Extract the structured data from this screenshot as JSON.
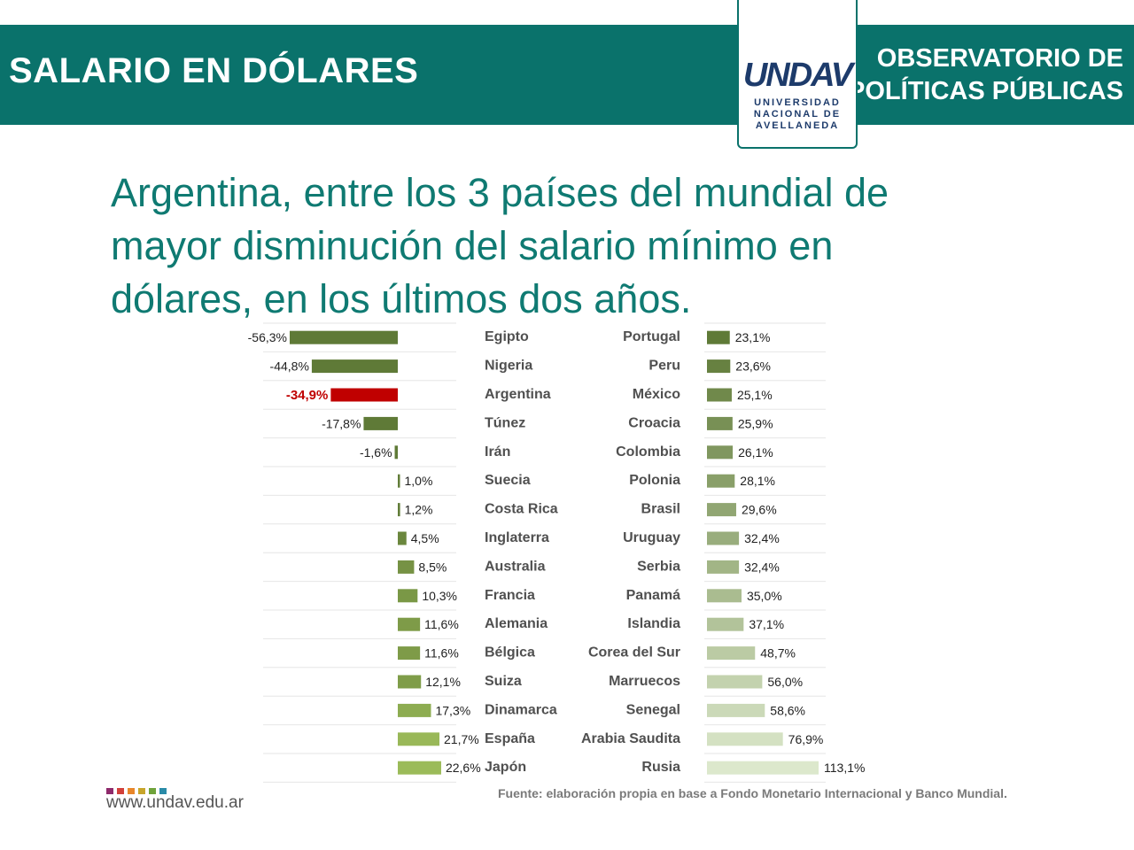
{
  "header": {
    "title": "SALARIO EN DÓLARES",
    "observatory_line1": "OBSERVATORIO DE",
    "observatory_line2": "POLÍTICAS PÚBLICAS",
    "logo_mark": "UNDAV",
    "logo_line1": "UNIVERSIDAD",
    "logo_line2": "NACIONAL DE",
    "logo_line3": "AVELLANEDA"
  },
  "headline": "Argentina, entre los 3 países del mundial de\nmayor disminución del salario mínimo en\ndólares, en los últimos dos años.",
  "footer": {
    "url": "www.undav.edu.ar",
    "source": "Fuente: elaboración propia en base a Fondo Monetario Internacional y Banco Mundial.",
    "dot_colors": [
      "#8e2a6b",
      "#d2403a",
      "#e8862a",
      "#c7a52b",
      "#6fa33b",
      "#2a8ba8"
    ]
  },
  "chart_data": {
    "type": "bar",
    "orientation": "horizontal",
    "unit": "%",
    "highlight": "Argentina",
    "colors": {
      "highlight": "#c00000",
      "negative": "#5f7a37",
      "positive_dark": "#5f7a37",
      "positive_light": "#dce8cc"
    },
    "panels": [
      {
        "categories": [
          "Egipto",
          "Nigeria",
          "Argentina",
          "Túnez",
          "Irán",
          "Suecia",
          "Costa Rica",
          "Inglaterra",
          "Australia",
          "Francia",
          "Alemania",
          "Bélgica",
          "Suiza",
          "Dinamarca",
          "España",
          "Japón"
        ],
        "values": [
          -56.3,
          -44.8,
          -34.9,
          -17.8,
          -1.6,
          1.0,
          1.2,
          4.5,
          8.5,
          10.3,
          11.6,
          11.6,
          12.1,
          17.3,
          21.7,
          22.6
        ],
        "labels": [
          "-56,3%",
          "-44,8%",
          "-34,9%",
          "-17,8%",
          "-1,6%",
          "1,0%",
          "1,2%",
          "4,5%",
          "8,5%",
          "10,3%",
          "11,6%",
          "11,6%",
          "12,1%",
          "17,3%",
          "21,7%",
          "22,6%"
        ]
      },
      {
        "categories": [
          "Portugal",
          "Peru",
          "México",
          "Croacia",
          "Colombia",
          "Polonia",
          "Brasil",
          "Uruguay",
          "Serbia",
          "Panamá",
          "Islandia",
          "Corea del Sur",
          "Marruecos",
          "Senegal",
          "Arabia Saudita",
          "Rusia"
        ],
        "values": [
          23.1,
          23.6,
          25.1,
          25.9,
          26.1,
          28.1,
          29.6,
          32.4,
          32.4,
          35.0,
          37.1,
          48.7,
          56.0,
          58.6,
          76.9,
          113.1
        ],
        "labels": [
          "23,1%",
          "23,6%",
          "25,1%",
          "25,9%",
          "26,1%",
          "28,1%",
          "29,6%",
          "32,4%",
          "32,4%",
          "35,0%",
          "37,1%",
          "48,7%",
          "56,0%",
          "58,6%",
          "76,9%",
          "113,1%"
        ]
      }
    ]
  }
}
